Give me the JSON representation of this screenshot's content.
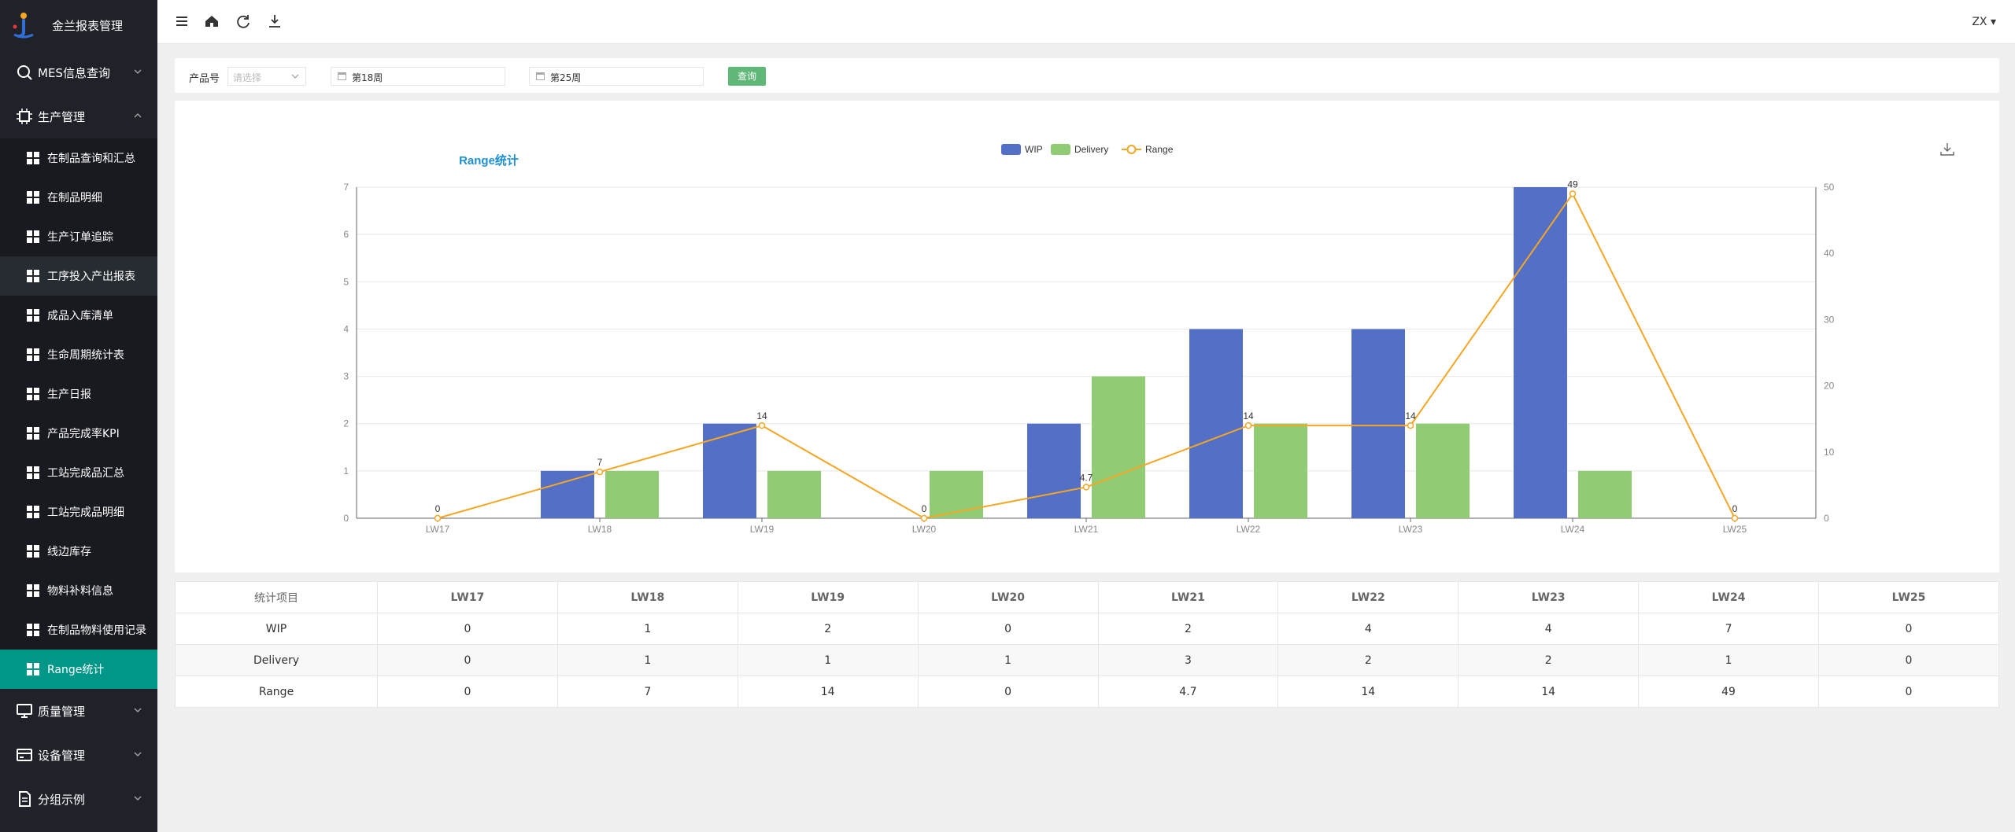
{
  "app": {
    "title": "金兰报表管理"
  },
  "sidebar": {
    "groups": [
      {
        "label": "MES信息查询",
        "icon": "search-icon"
      },
      {
        "label": "生产管理",
        "icon": "chip-icon"
      }
    ],
    "items": [
      "在制品查询和汇总",
      "在制品明细",
      "生产订单追踪",
      "工序投入产出报表",
      "成品入库清单",
      "生命周期统计表",
      "生产日报",
      "产品完成率KPI",
      "工站完成品汇总",
      "工站完成品明细",
      "线边库存",
      "物料补料信息",
      "在制品物料使用记录",
      "Range统计"
    ],
    "bottom_groups": [
      {
        "label": "质量管理",
        "icon": "monitor-icon"
      },
      {
        "label": "设备管理",
        "icon": "card-icon"
      },
      {
        "label": "分组示例",
        "icon": "document-icon"
      }
    ]
  },
  "header": {
    "user": "ZX"
  },
  "filter": {
    "product_label": "产品号",
    "product_placeholder": "请选择",
    "start_week": "第18周",
    "end_week": "第25周",
    "query_label": "查询"
  },
  "colors": {
    "wip": "#5470c6",
    "delivery": "#91cc75",
    "range": "#f5a623",
    "active": "#009688"
  },
  "chart_data": {
    "type": "bar",
    "title": "Range统计",
    "categories": [
      "LW17",
      "LW18",
      "LW19",
      "LW20",
      "LW21",
      "LW22",
      "LW23",
      "LW24",
      "LW25"
    ],
    "series": [
      {
        "name": "WIP",
        "type": "bar",
        "axis": "left",
        "values": [
          0,
          1,
          2,
          0,
          2,
          4,
          4,
          7,
          0
        ]
      },
      {
        "name": "Delivery",
        "type": "bar",
        "axis": "left",
        "values": [
          0,
          1,
          1,
          1,
          3,
          2,
          2,
          1,
          0
        ]
      },
      {
        "name": "Range",
        "type": "line",
        "axis": "right",
        "values": [
          0,
          7,
          14,
          0,
          4.7,
          14,
          14,
          49,
          0
        ],
        "labels": [
          "0",
          "7",
          "14",
          "0",
          "4.7",
          "14",
          "14",
          "49",
          "0"
        ]
      }
    ],
    "y_left": {
      "range": [
        0,
        7
      ],
      "ticks": [
        "0",
        "1",
        "2",
        "3",
        "4",
        "5",
        "6",
        "7"
      ]
    },
    "y_right": {
      "range": [
        0,
        50
      ],
      "ticks": [
        "0",
        "10",
        "20",
        "30",
        "40",
        "50"
      ]
    },
    "legend": "top-center",
    "grid": true
  },
  "table": {
    "header": [
      "统计项目",
      "LW17",
      "LW18",
      "LW19",
      "LW20",
      "LW21",
      "LW22",
      "LW23",
      "LW24",
      "LW25"
    ],
    "rows": [
      [
        "WIP",
        "0",
        "1",
        "2",
        "0",
        "2",
        "4",
        "4",
        "7",
        "0"
      ],
      [
        "Delivery",
        "0",
        "1",
        "1",
        "1",
        "3",
        "2",
        "2",
        "1",
        "0"
      ],
      [
        "Range",
        "0",
        "7",
        "14",
        "0",
        "4.7",
        "14",
        "14",
        "49",
        "0"
      ]
    ]
  }
}
